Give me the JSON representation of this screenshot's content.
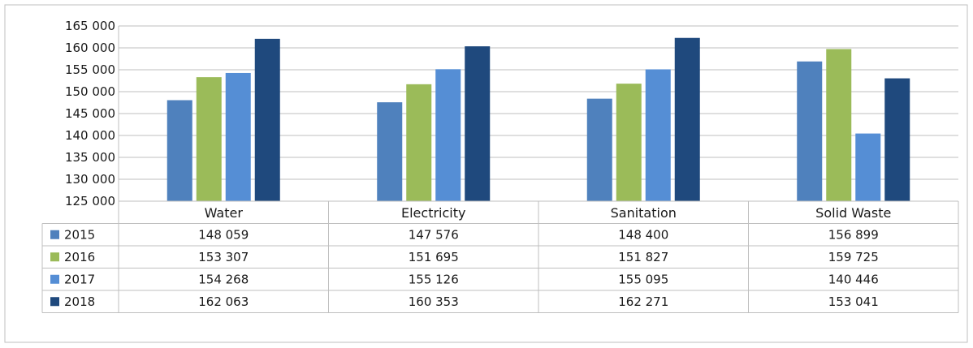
{
  "chart_data": {
    "type": "bar",
    "title": "",
    "xlabel": "",
    "ylabel": "",
    "categories": [
      "Water",
      "Electricity",
      "Sanitation",
      "Solid Waste"
    ],
    "series": [
      {
        "name": "2015",
        "color": "#4F81BD",
        "values": [
          148059,
          147576,
          148400,
          156899
        ],
        "labels": [
          "148 059",
          "147 576",
          "148 400",
          "156 899"
        ]
      },
      {
        "name": "2016",
        "color": "#9BBB59",
        "values": [
          153307,
          151695,
          151827,
          159725
        ],
        "labels": [
          "153 307",
          "151 695",
          "151 827",
          "159 725"
        ]
      },
      {
        "name": "2017",
        "color": "#558ED5",
        "values": [
          154268,
          155126,
          155095,
          140446
        ],
        "labels": [
          "154 268",
          "155 126",
          "155 095",
          "140 446"
        ]
      },
      {
        "name": "2018",
        "color": "#1F497D",
        "values": [
          162063,
          160353,
          162271,
          153041
        ],
        "labels": [
          "162 063",
          "160 353",
          "162 271",
          "153 041"
        ]
      }
    ],
    "ylim": [
      125000,
      165000
    ],
    "yticks": [
      {
        "value": 165000,
        "label": "165 000"
      },
      {
        "value": 160000,
        "label": "160 000"
      },
      {
        "value": 155000,
        "label": "155 000"
      },
      {
        "value": 150000,
        "label": "150 000"
      },
      {
        "value": 145000,
        "label": "145 000"
      },
      {
        "value": 140000,
        "label": "140 000"
      },
      {
        "value": 135000,
        "label": "135 000"
      },
      {
        "value": 130000,
        "label": "130 000"
      },
      {
        "value": 125000,
        "label": "125 000"
      }
    ],
    "grid": true,
    "legend": "data-table-left"
  }
}
